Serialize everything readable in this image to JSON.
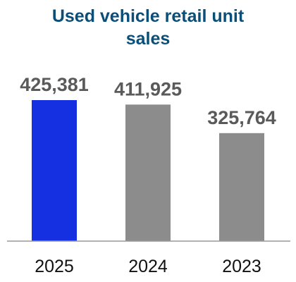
{
  "chart_data": {
    "type": "bar",
    "title_lines": [
      "Used vehicle retail unit",
      "sales"
    ],
    "categories": [
      "2025",
      "2024",
      "2023"
    ],
    "values": [
      425381,
      411925,
      325764
    ],
    "value_labels": [
      "425,381",
      "411,925",
      "325,764"
    ],
    "ylim": [
      0,
      425381
    ],
    "grid": false,
    "legend": "none",
    "colors": {
      "title": "#0b4f78",
      "highlight_bar": "#1430e0",
      "bar": "#8c8c8c",
      "value_text": "#5a5a5a",
      "tick_text": "#111111",
      "axis": "#999999"
    },
    "highlight_index": 0
  }
}
